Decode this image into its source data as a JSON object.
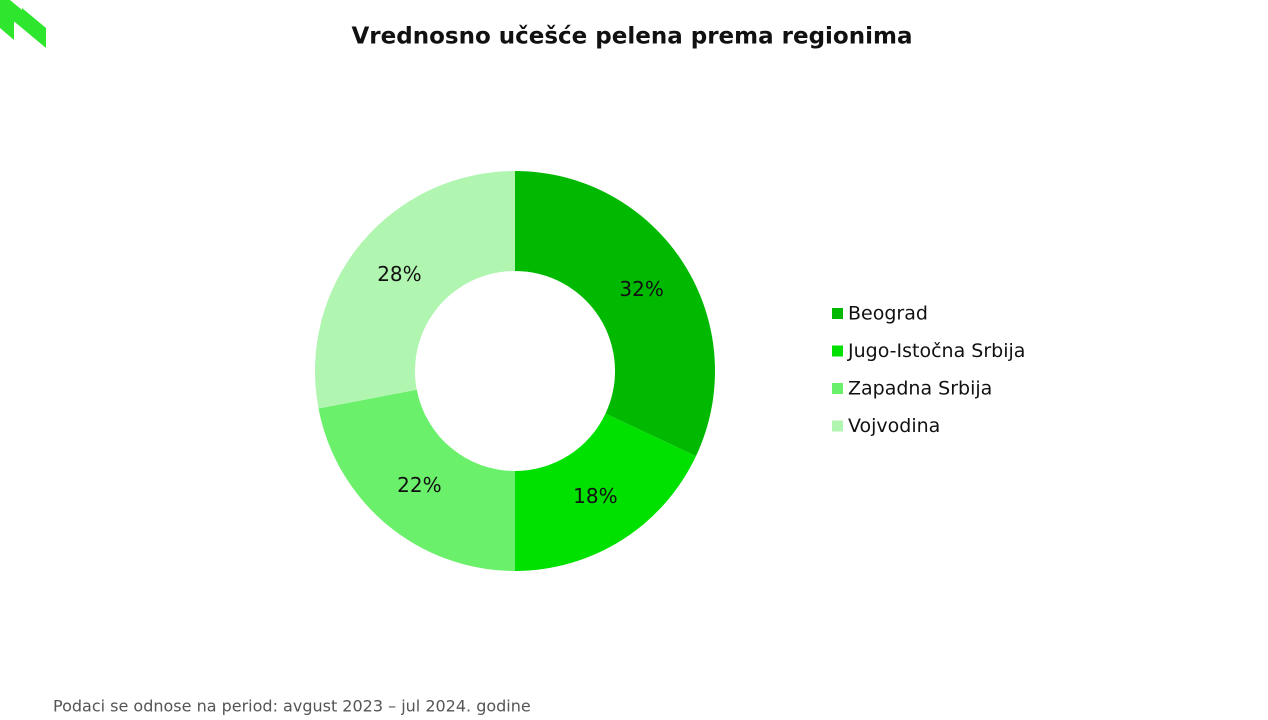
{
  "chart_data": {
    "type": "donut",
    "title": "Vrednosno učešće pelena prema regionima",
    "categories": [
      "Beograd",
      "Jugo-Istočna Srbija",
      "Zapadna Srbija",
      "Vojvodina"
    ],
    "values": [
      32,
      18,
      22,
      28
    ],
    "value_labels": [
      "32%",
      "18%",
      "22%",
      "28%"
    ],
    "colors": [
      "#00b900",
      "#00e100",
      "#6af06a",
      "#b0f6b0"
    ],
    "legend": "right",
    "footnote": "Podaci se odnose na period: avgust 2023 – jul 2024. godine"
  }
}
